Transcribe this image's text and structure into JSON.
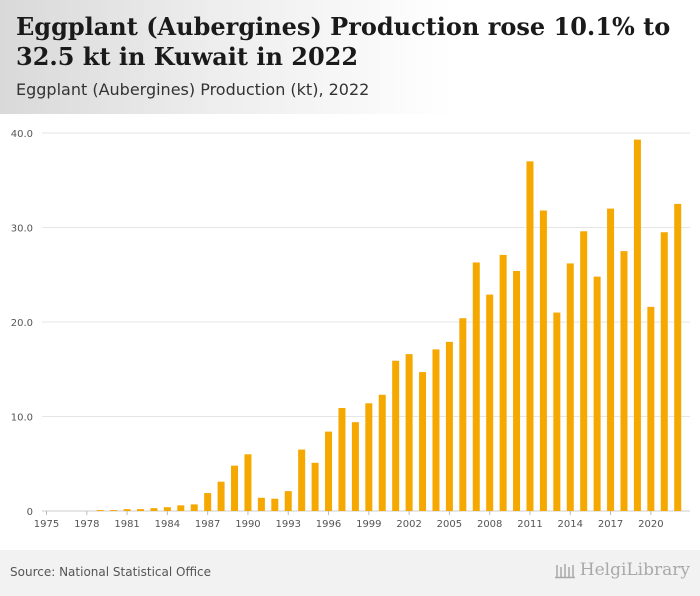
{
  "header": {
    "title": "Eggplant (Aubergines) Production rose 10.1% to 32.5 kt in Kuwait in 2022",
    "subtitle": "Eggplant (Aubergines) Production (kt), 2022"
  },
  "footer": {
    "source": "Source: National Statistical Office",
    "brand": "HelgiLibrary"
  },
  "colors": {
    "bar": "#f5a800",
    "grid": "#e6e6e6",
    "axis_text": "#555555"
  },
  "chart_data": {
    "type": "bar",
    "title": "Eggplant (Aubergines) Production (kt), 2022",
    "xlabel": "",
    "ylabel": "",
    "ylim": [
      0,
      40
    ],
    "yticks": [
      "0",
      "10.0",
      "20.0",
      "30.0",
      "40.0"
    ],
    "xticks": [
      "1975",
      "1978",
      "1981",
      "1984",
      "1987",
      "1990",
      "1993",
      "1996",
      "1999",
      "2002",
      "2005",
      "2008",
      "2011",
      "2014",
      "2017",
      "2020"
    ],
    "grid": true,
    "legend": "none",
    "categories": [
      "1975",
      "1976",
      "1977",
      "1978",
      "1979",
      "1980",
      "1981",
      "1982",
      "1983",
      "1984",
      "1985",
      "1986",
      "1987",
      "1988",
      "1989",
      "1990",
      "1991",
      "1992",
      "1993",
      "1994",
      "1995",
      "1996",
      "1997",
      "1998",
      "1999",
      "2000",
      "2001",
      "2002",
      "2003",
      "2004",
      "2005",
      "2006",
      "2007",
      "2008",
      "2009",
      "2010",
      "2011",
      "2012",
      "2013",
      "2014",
      "2015",
      "2016",
      "2017",
      "2018",
      "2019",
      "2020",
      "2021",
      "2022"
    ],
    "values": [
      0,
      0,
      0,
      0,
      0.1,
      0.1,
      0.2,
      0.2,
      0.3,
      0.4,
      0.6,
      0.7,
      1.9,
      3.1,
      4.8,
      6.0,
      1.4,
      1.3,
      2.1,
      6.5,
      5.1,
      8.4,
      10.9,
      9.4,
      11.4,
      12.3,
      15.9,
      16.6,
      14.7,
      17.1,
      17.9,
      20.4,
      26.3,
      22.9,
      27.1,
      25.4,
      37.0,
      31.8,
      21.0,
      26.2,
      29.6,
      24.8,
      32.0,
      27.5,
      39.3,
      21.6,
      29.5,
      32.5
    ]
  }
}
